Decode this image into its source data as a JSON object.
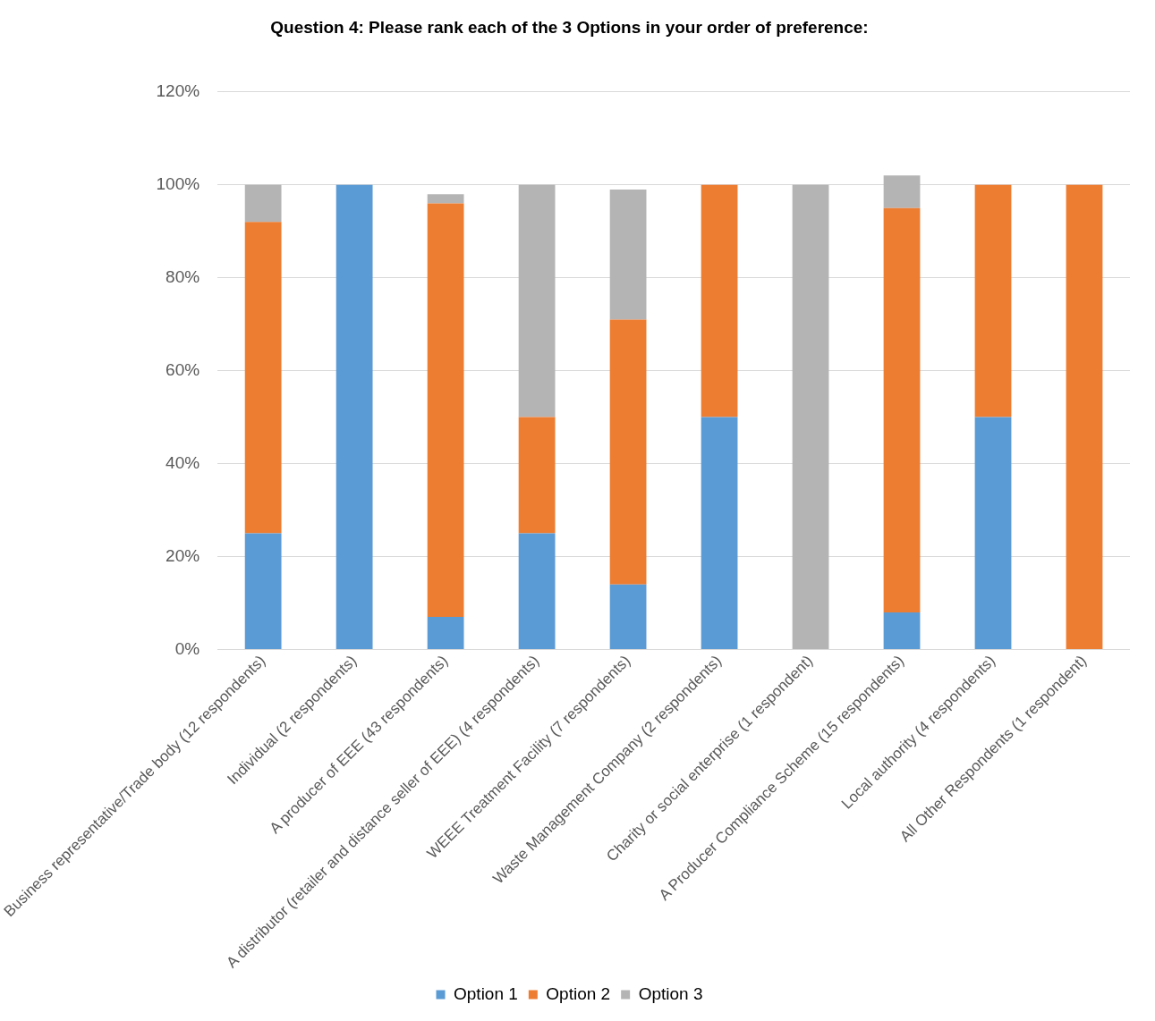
{
  "chart_data": {
    "type": "bar",
    "title": "Question 4: Please rank each of the 3 Options in your order of preference:",
    "categories": [
      "Business representative/Trade body (12 respondents)",
      "Individual (2 respondents)",
      "A producer of EEE (43 respondents)",
      "A distributor (retailer and distance seller of EEE) (4 respondents)",
      "WEEE Treatment Facility (7 respondents)",
      "Waste Management Company (2 respondents)",
      "Charity or social enterprise (1 respondent)",
      "A Producer Compliance Scheme (15 respondents)",
      "Local authority (4 respondents)",
      "All Other Respondents (1 respondent)"
    ],
    "series": [
      {
        "name": "Option 1",
        "color": "#5b9bd5",
        "values": [
          25,
          100,
          7,
          25,
          14,
          50,
          0,
          8,
          50,
          0
        ]
      },
      {
        "name": "Option 2",
        "color": "#ed7d31",
        "values": [
          67,
          0,
          89,
          25,
          57,
          50,
          0,
          87,
          50,
          100
        ]
      },
      {
        "name": "Option 3",
        "color": "#b4b4b4",
        "values": [
          8,
          0,
          2,
          50,
          28,
          0,
          100,
          7,
          0,
          0
        ]
      }
    ],
    "stacked": true,
    "ylim": [
      0,
      120
    ],
    "yticks": [
      {
        "value": 0,
        "label": "0%"
      },
      {
        "value": 20,
        "label": "20%"
      },
      {
        "value": 40,
        "label": "40%"
      },
      {
        "value": 60,
        "label": "60%"
      },
      {
        "value": 80,
        "label": "80%"
      },
      {
        "value": 100,
        "label": "100%"
      },
      {
        "value": 120,
        "label": "120%"
      }
    ],
    "grid": "y",
    "legend": "bottom"
  }
}
